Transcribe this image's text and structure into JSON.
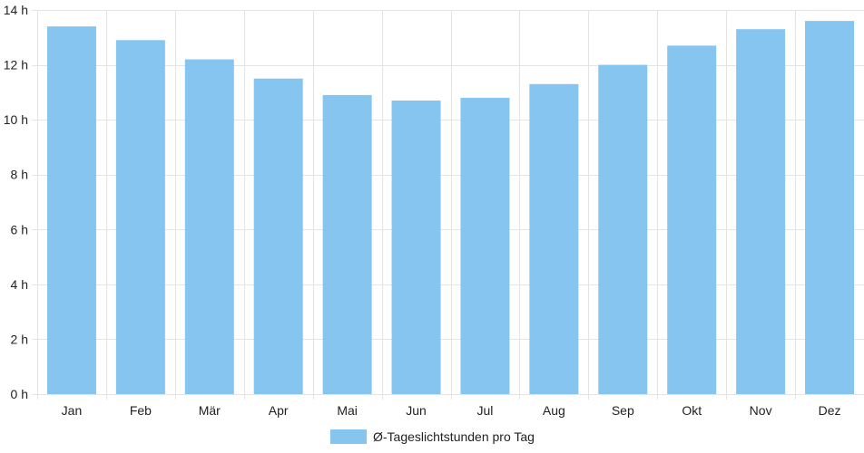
{
  "colors": {
    "bar_fill": "#86c5f0",
    "grid": "#e4e4e4",
    "axis": "#c8c8c8",
    "text": "#222222"
  },
  "chart_data": {
    "type": "bar",
    "categories": [
      "Jan",
      "Feb",
      "Mär",
      "Apr",
      "Mai",
      "Jun",
      "Jul",
      "Aug",
      "Sep",
      "Okt",
      "Nov",
      "Dez"
    ],
    "series": [
      {
        "name": "Ø-Tageslichtstunden pro Tag",
        "values": [
          13.4,
          12.9,
          12.2,
          11.5,
          10.9,
          10.7,
          10.8,
          11.3,
          12.0,
          12.7,
          13.3,
          13.6
        ]
      }
    ],
    "ylim": [
      0,
      14
    ],
    "yticks": [
      0,
      2,
      4,
      6,
      8,
      10,
      12,
      14
    ],
    "ytick_suffix": " h",
    "grid": true,
    "legend_position": "bottom-center"
  }
}
